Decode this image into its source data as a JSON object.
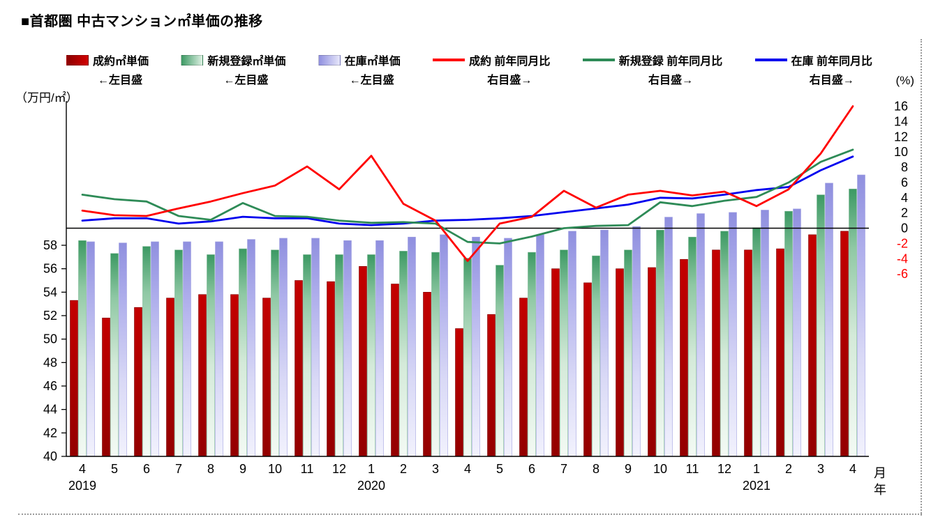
{
  "title": "■首都圏 中古マンション㎡単価の推移",
  "legend": {
    "items": [
      {
        "label": "成約㎡単価",
        "sublabel": "←左目盛"
      },
      {
        "label": "新規登録㎡単価",
        "sublabel": "←左目盛"
      },
      {
        "label": "在庫㎡単価",
        "sublabel": "←左目盛"
      },
      {
        "label": "成約 前年同月比",
        "sublabel": "右目盛→"
      },
      {
        "label": "新規登録 前年同月比",
        "sublabel": "右目盛→"
      },
      {
        "label": "在庫 前年同月比",
        "sublabel": "右目盛→"
      }
    ]
  },
  "chart_data": {
    "type": "combo",
    "subtype": "grouped-bars-with-lines",
    "categories": [
      "4",
      "5",
      "6",
      "7",
      "8",
      "9",
      "10",
      "11",
      "12",
      "1",
      "2",
      "3",
      "4",
      "5",
      "6",
      "7",
      "8",
      "9",
      "10",
      "11",
      "12",
      "1",
      "2",
      "3",
      "4"
    ],
    "year_markers": [
      {
        "index": 0,
        "label": "2019"
      },
      {
        "index": 9,
        "label": "2020"
      },
      {
        "index": 21,
        "label": "2021"
      }
    ],
    "bar_series": [
      {
        "name": "成約㎡単価",
        "axis": "left",
        "stroke": "#7c0000",
        "fill_stops": [
          [
            "0%",
            "#c40000"
          ],
          [
            "100%",
            "#930000"
          ]
        ],
        "values": [
          53.3,
          51.8,
          52.7,
          53.5,
          53.8,
          53.8,
          53.5,
          55.0,
          54.9,
          56.2,
          54.7,
          54.0,
          50.9,
          52.1,
          53.5,
          56.0,
          54.8,
          56.0,
          56.1,
          56.8,
          57.6,
          57.6,
          57.7,
          58.9,
          59.2
        ]
      },
      {
        "name": "新規登録㎡単価",
        "axis": "left",
        "stroke": "#79b691",
        "fill_stops": [
          [
            "0%",
            "#3c9963"
          ],
          [
            "22%",
            "#8fc8a4"
          ],
          [
            "55%",
            "#d4ead9"
          ],
          [
            "100%",
            "#f3faf4"
          ]
        ],
        "values": [
          58.4,
          57.3,
          57.9,
          57.6,
          57.2,
          57.7,
          57.6,
          57.2,
          57.2,
          57.2,
          57.5,
          57.4,
          56.9,
          56.3,
          57.4,
          57.6,
          57.1,
          57.6,
          59.3,
          58.7,
          59.2,
          59.5,
          60.9,
          62.3,
          62.8
        ]
      },
      {
        "name": "在庫㎡単価",
        "axis": "left",
        "stroke": "#a2a2e2",
        "fill_stops": [
          [
            "0%",
            "#8f8fdf"
          ],
          [
            "28%",
            "#b0b0ec"
          ],
          [
            "65%",
            "#d9d9f6"
          ],
          [
            "100%",
            "#f2f2fd"
          ]
        ],
        "values": [
          58.3,
          58.2,
          58.3,
          58.3,
          58.3,
          58.5,
          58.6,
          58.6,
          58.4,
          58.4,
          58.7,
          58.9,
          58.7,
          58.6,
          58.9,
          59.2,
          59.3,
          59.6,
          60.4,
          60.7,
          60.8,
          61.0,
          61.1,
          63.3,
          64.0
        ]
      }
    ],
    "line_series": [
      {
        "name": "成約 前年同月比",
        "axis": "right",
        "color": "#ff0000",
        "values": [
          2.3,
          1.7,
          1.6,
          2.6,
          3.5,
          4.6,
          5.6,
          8.1,
          5.1,
          9.5,
          3.2,
          1.0,
          -4.3,
          0.6,
          1.5,
          4.9,
          2.7,
          4.4,
          4.9,
          4.3,
          4.8,
          2.9,
          5.1,
          9.8,
          16.0
        ]
      },
      {
        "name": "新規登録 前年同月比",
        "axis": "right",
        "color": "#2e8b57",
        "values": [
          4.4,
          3.8,
          3.5,
          1.6,
          1.1,
          3.3,
          1.6,
          1.5,
          1.0,
          0.7,
          0.8,
          0.6,
          -1.8,
          -2.0,
          -1.1,
          0.0,
          0.3,
          0.4,
          3.4,
          2.9,
          3.6,
          4.1,
          6.0,
          8.7,
          10.3
        ]
      },
      {
        "name": "在庫 前年同月比",
        "axis": "right",
        "color": "#0000ee",
        "values": [
          1.0,
          1.3,
          1.3,
          0.6,
          0.9,
          1.5,
          1.3,
          1.3,
          0.6,
          0.4,
          0.6,
          1.0,
          1.1,
          1.3,
          1.6,
          2.1,
          2.6,
          3.1,
          4.0,
          3.9,
          4.4,
          5.0,
          5.4,
          7.6,
          9.4
        ]
      }
    ],
    "left_axis": {
      "min": 40,
      "max": 58,
      "step": 2,
      "unit": "（万円/㎡）",
      "tick_color": "#000000"
    },
    "right_axis": {
      "min": -6,
      "max": 16,
      "step": 2,
      "unit": "(%)",
      "tick_color": "#000000",
      "negative_color": "#ff0000"
    },
    "x_axis": {
      "month_suffix": "月",
      "year_suffix": "年"
    },
    "grid": "off",
    "legend_position": "top"
  }
}
